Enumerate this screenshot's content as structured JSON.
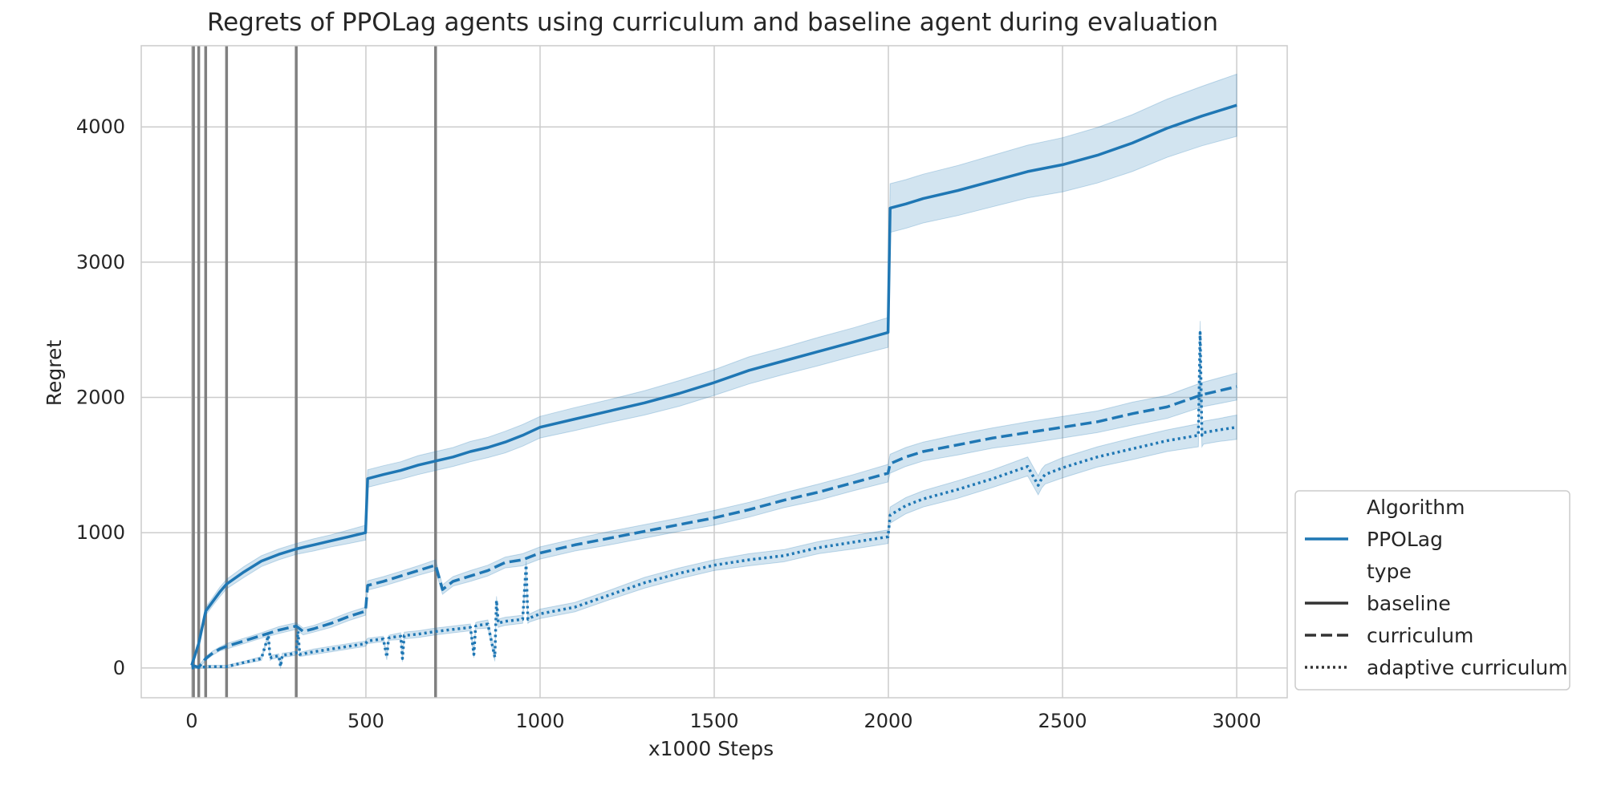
{
  "chart_data": {
    "type": "line",
    "title": "Regrets of PPOLag agents using curriculum and baseline agent during evaluation",
    "xlabel": "x1000 Steps",
    "ylabel": "Regret",
    "xlim": [
      -145,
      3145
    ],
    "ylim": [
      -220,
      4600
    ],
    "xticks": [
      0,
      500,
      1000,
      1500,
      2000,
      2500,
      3000
    ],
    "xtick_labels": [
      "0",
      "500",
      "1000",
      "1500",
      "2000",
      "2500",
      "3000"
    ],
    "yticks": [
      0,
      1000,
      2000,
      3000,
      4000
    ],
    "ytick_labels": [
      "0",
      "1000",
      "2000",
      "3000",
      "4000"
    ],
    "grid": true,
    "legend_position": "lower-right-outside",
    "color": "#1f77b4",
    "vlines": [
      5,
      20,
      40,
      100,
      300,
      700
    ],
    "legend": {
      "hue_title": "Algorithm",
      "hue_entries": [
        "PPOLag"
      ],
      "style_title": "type",
      "style_entries": [
        "baseline",
        "curriculum",
        "adaptive curriculum"
      ]
    },
    "series": [
      {
        "name": "baseline",
        "style": "solid",
        "x": [
          0,
          20,
          40,
          60,
          80,
          100,
          150,
          200,
          250,
          300,
          350,
          400,
          450,
          499,
          505,
          550,
          600,
          650,
          700,
          750,
          800,
          850,
          900,
          950,
          1000,
          1100,
          1200,
          1300,
          1400,
          1500,
          1600,
          1700,
          1800,
          1900,
          1999,
          2005,
          2050,
          2100,
          2200,
          2300,
          2400,
          2500,
          2600,
          2700,
          2800,
          2900,
          3000
        ],
        "y": [
          20,
          180,
          420,
          490,
          560,
          620,
          710,
          790,
          840,
          880,
          910,
          940,
          970,
          1000,
          1400,
          1430,
          1460,
          1500,
          1530,
          1560,
          1600,
          1630,
          1670,
          1720,
          1780,
          1840,
          1900,
          1960,
          2030,
          2110,
          2200,
          2270,
          2340,
          2410,
          2480,
          3400,
          3430,
          3470,
          3530,
          3600,
          3670,
          3720,
          3790,
          3880,
          3990,
          4080,
          4160
        ],
        "ci": [
          10,
          20,
          30,
          30,
          35,
          35,
          40,
          40,
          40,
          40,
          45,
          45,
          50,
          55,
          65,
          65,
          65,
          70,
          70,
          70,
          75,
          75,
          80,
          80,
          80,
          85,
          85,
          90,
          95,
          95,
          100,
          100,
          105,
          105,
          110,
          180,
          180,
          180,
          185,
          190,
          195,
          200,
          205,
          210,
          215,
          220,
          230
        ]
      },
      {
        "name": "curriculum",
        "style": "dashed",
        "x": [
          0,
          20,
          40,
          60,
          80,
          100,
          150,
          200,
          250,
          300,
          320,
          350,
          400,
          450,
          499,
          505,
          550,
          600,
          650,
          700,
          720,
          750,
          800,
          850,
          900,
          950,
          1000,
          1100,
          1200,
          1300,
          1400,
          1500,
          1600,
          1700,
          1800,
          1900,
          1999,
          2005,
          2050,
          2100,
          2200,
          2300,
          2400,
          2500,
          2600,
          2700,
          2800,
          2900,
          3000
        ],
        "y": [
          20,
          5,
          70,
          110,
          140,
          160,
          200,
          240,
          280,
          310,
          270,
          290,
          330,
          380,
          420,
          610,
          640,
          680,
          720,
          760,
          580,
          640,
          680,
          720,
          780,
          800,
          850,
          910,
          960,
          1010,
          1060,
          1110,
          1170,
          1240,
          1300,
          1370,
          1440,
          1510,
          1560,
          1600,
          1650,
          1700,
          1740,
          1780,
          1820,
          1880,
          1930,
          2020,
          2080
        ],
        "ci": [
          10,
          10,
          15,
          15,
          15,
          20,
          20,
          20,
          25,
          25,
          25,
          25,
          30,
          30,
          30,
          35,
          35,
          35,
          35,
          40,
          35,
          35,
          40,
          40,
          40,
          45,
          45,
          45,
          50,
          50,
          50,
          55,
          55,
          55,
          60,
          60,
          65,
          70,
          70,
          70,
          75,
          75,
          80,
          80,
          80,
          85,
          85,
          90,
          100
        ]
      },
      {
        "name": "adaptive curriculum",
        "style": "dotted",
        "x": [
          0,
          50,
          100,
          150,
          200,
          220,
          225,
          230,
          250,
          255,
          260,
          280,
          300,
          305,
          310,
          350,
          400,
          450,
          499,
          505,
          550,
          560,
          565,
          570,
          600,
          605,
          610,
          650,
          700,
          750,
          800,
          810,
          815,
          820,
          850,
          870,
          875,
          880,
          885,
          900,
          950,
          960,
          965,
          970,
          1000,
          1100,
          1200,
          1300,
          1400,
          1500,
          1600,
          1700,
          1800,
          1900,
          1999,
          2005,
          2050,
          2100,
          2200,
          2300,
          2400,
          2430,
          2440,
          2450,
          2500,
          2600,
          2700,
          2800,
          2890,
          2895,
          2900,
          2905,
          2950,
          3000
        ],
        "y": [
          0,
          10,
          10,
          40,
          70,
          240,
          70,
          80,
          90,
          10,
          95,
          100,
          110,
          270,
          100,
          120,
          140,
          160,
          180,
          200,
          215,
          80,
          220,
          225,
          235,
          70,
          240,
          250,
          270,
          285,
          300,
          100,
          310,
          315,
          325,
          80,
          500,
          330,
          335,
          345,
          360,
          760,
          360,
          370,
          400,
          450,
          540,
          630,
          700,
          760,
          800,
          830,
          890,
          930,
          970,
          1130,
          1200,
          1250,
          1320,
          1400,
          1490,
          1350,
          1400,
          1430,
          1480,
          1560,
          1620,
          1680,
          1720,
          2480,
          1720,
          1740,
          1760,
          1780
        ],
        "ci": [
          5,
          10,
          10,
          10,
          15,
          15,
          15,
          15,
          15,
          15,
          15,
          15,
          15,
          15,
          15,
          20,
          20,
          20,
          20,
          20,
          20,
          20,
          20,
          20,
          25,
          25,
          25,
          25,
          25,
          25,
          25,
          25,
          25,
          25,
          30,
          30,
          30,
          30,
          30,
          30,
          30,
          30,
          30,
          30,
          35,
          35,
          35,
          40,
          40,
          40,
          45,
          45,
          45,
          50,
          50,
          60,
          60,
          60,
          65,
          65,
          70,
          70,
          70,
          70,
          75,
          75,
          80,
          80,
          85,
          85,
          85,
          85,
          85,
          90
        ]
      }
    ]
  }
}
